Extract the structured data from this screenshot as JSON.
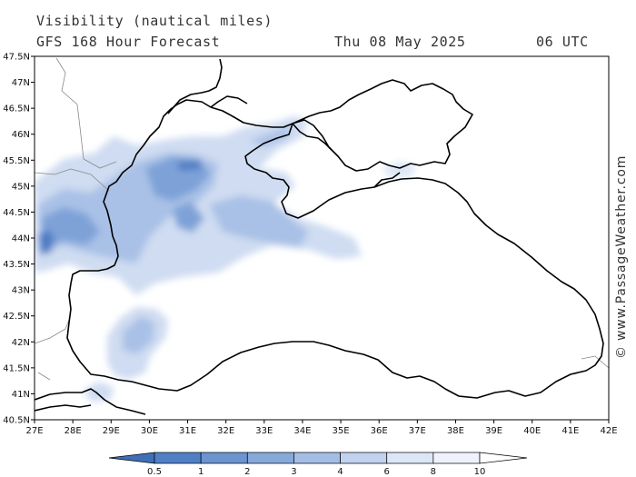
{
  "header": {
    "title_line1": "Visibility (nautical miles)",
    "title_line2": "GFS 168 Hour Forecast",
    "date": "Thu 08 May 2025",
    "time": "06 UTC"
  },
  "credit": "© www.PassageWeather.com",
  "map": {
    "region": "Black Sea",
    "lat_labels": [
      "47.5N",
      "47N",
      "46.5N",
      "46N",
      "45.5N",
      "45N",
      "44.5N",
      "44N",
      "43.5N",
      "43N",
      "42.5N",
      "42N",
      "41.5N",
      "41N",
      "40.5N"
    ],
    "lon_labels": [
      "27E",
      "28E",
      "29E",
      "30E",
      "31E",
      "32E",
      "33E",
      "34E",
      "35E",
      "36E",
      "37E",
      "38E",
      "39E",
      "40E",
      "41E",
      "42E"
    ],
    "colors": {
      "land": "#ffffff",
      "coast": "#000000",
      "border": "#888888",
      "vis_lt_1": "#4d7dc4",
      "vis_1_2": "#7ea2d8",
      "vis_2_4": "#a9c1e6",
      "vis_4_8": "#cfdcf1"
    }
  },
  "legend": {
    "ticks": [
      "0.5",
      "1",
      "2",
      "3",
      "4",
      "6",
      "8",
      "10"
    ],
    "colors": [
      "#3f6fb6",
      "#4f80c6",
      "#6b94d0",
      "#87a9da",
      "#a4bde4",
      "#c0d2ee",
      "#dbe6f6",
      "#eef3fb"
    ]
  }
}
